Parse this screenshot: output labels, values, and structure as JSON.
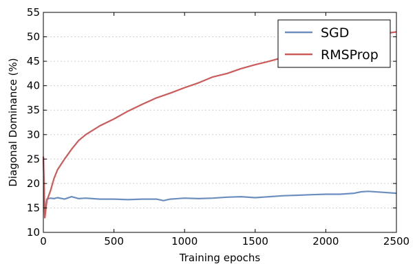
{
  "chart_data": {
    "type": "line",
    "title": "",
    "xlabel": "Training epochs",
    "ylabel": "Diagonal Dominance (%)",
    "xlim": [
      0,
      2500
    ],
    "ylim": [
      10,
      55
    ],
    "x_ticks": [
      0,
      500,
      1000,
      1500,
      2000,
      2500
    ],
    "y_ticks": [
      10,
      15,
      20,
      25,
      30,
      35,
      40,
      45,
      50,
      55
    ],
    "grid": "horizontal dotted",
    "legend_position": "top-right",
    "series": [
      {
        "name": "SGD",
        "color": "#6c8ebf",
        "x": [
          0,
          10,
          25,
          50,
          75,
          100,
          150,
          200,
          250,
          300,
          400,
          500,
          600,
          700,
          800,
          850,
          900,
          1000,
          1100,
          1200,
          1300,
          1400,
          1500,
          1600,
          1700,
          1800,
          1900,
          2000,
          2100,
          2200,
          2250,
          2300,
          2400,
          2500
        ],
        "values": [
          25.5,
          13.5,
          16.8,
          17.0,
          16.9,
          17.1,
          16.8,
          17.3,
          16.9,
          17.0,
          16.8,
          16.8,
          16.7,
          16.8,
          16.8,
          16.5,
          16.8,
          17.0,
          16.9,
          17.0,
          17.2,
          17.3,
          17.1,
          17.3,
          17.5,
          17.6,
          17.7,
          17.8,
          17.8,
          18.0,
          18.3,
          18.4,
          18.2,
          18.0
        ]
      },
      {
        "name": "RMSProp",
        "color": "#cc5a5a",
        "x": [
          0,
          10,
          25,
          50,
          75,
          100,
          150,
          200,
          250,
          300,
          400,
          500,
          600,
          700,
          800,
          900,
          1000,
          1100,
          1200,
          1300,
          1400,
          1500,
          1600,
          1700,
          1800,
          1900,
          2000,
          2100,
          2200,
          2300,
          2400,
          2450,
          2500
        ],
        "values": [
          25.5,
          13.0,
          16.5,
          18.5,
          21.0,
          22.8,
          25.0,
          27.0,
          28.8,
          30.0,
          31.8,
          33.2,
          34.8,
          36.2,
          37.5,
          38.5,
          39.6,
          40.6,
          41.8,
          42.5,
          43.5,
          44.3,
          45.0,
          45.8,
          46.5,
          47.2,
          47.8,
          48.5,
          49.2,
          49.8,
          50.5,
          50.8,
          51.0
        ]
      }
    ]
  }
}
